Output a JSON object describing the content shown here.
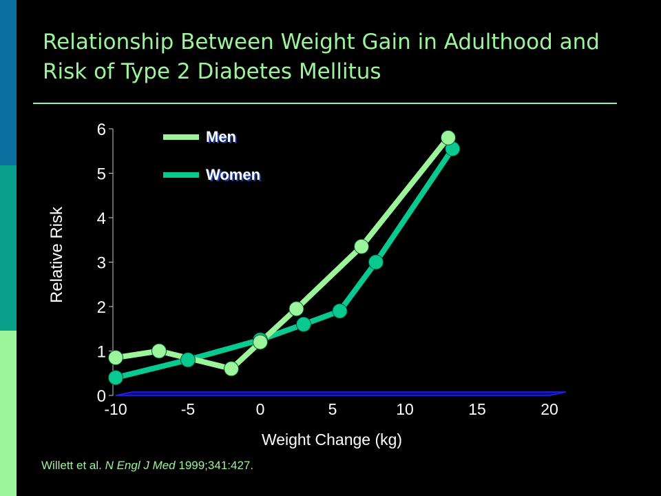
{
  "slide": {
    "title_line1": "Relationship Between Weight Gain in Adulthood and",
    "title_line2": "Risk of Type 2 Diabetes Mellitus",
    "citation_authors": "Willett et al. ",
    "citation_journal": "N Engl J Med",
    "citation_ref": " 1999;341:427."
  },
  "colors": {
    "men": "#9cf59a",
    "women": "#08c990",
    "text": "#ffffff",
    "accent": "#9cf59a",
    "axis": "#2222ff"
  },
  "chart_data": {
    "type": "line",
    "title": "",
    "xlabel": "Weight Change (kg)",
    "ylabel": "Relative Risk",
    "xlim": [
      -10,
      20
    ],
    "ylim": [
      0,
      6
    ],
    "xticks": [
      "-10",
      "-5",
      "0",
      "5",
      "10",
      "15",
      "20"
    ],
    "yticks": [
      "0",
      "1",
      "2",
      "3",
      "4",
      "5",
      "6"
    ],
    "legend_position": "top-left",
    "grid": false,
    "series": [
      {
        "name": "Men",
        "points": [
          [
            -10,
            0.85
          ],
          [
            -7,
            1.0
          ],
          [
            -2,
            0.6
          ],
          [
            0,
            1.2
          ],
          [
            2.5,
            1.95
          ],
          [
            7,
            3.35
          ],
          [
            13,
            5.8
          ]
        ]
      },
      {
        "name": "Women",
        "points": [
          [
            -10,
            0.4
          ],
          [
            -5,
            0.8
          ],
          [
            0,
            1.25
          ],
          [
            3,
            1.6
          ],
          [
            5.5,
            1.9
          ],
          [
            8,
            3.0
          ],
          [
            13.3,
            5.55
          ]
        ]
      }
    ]
  }
}
